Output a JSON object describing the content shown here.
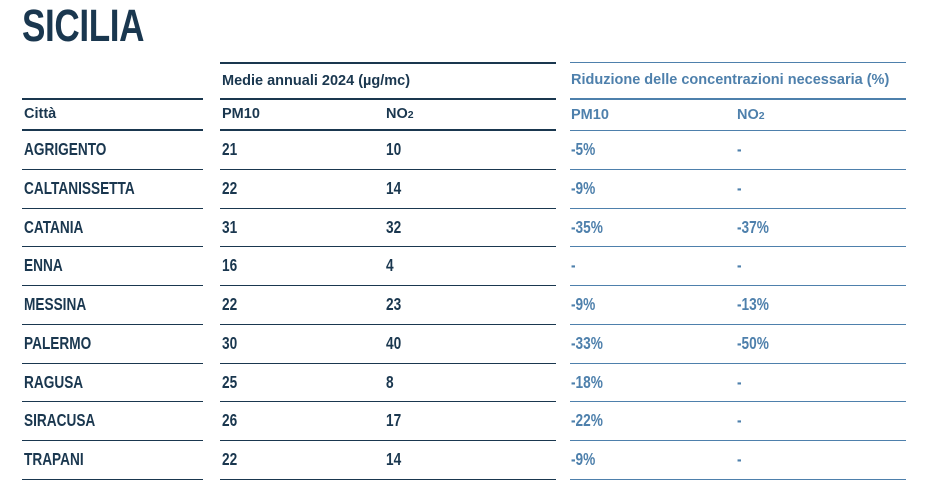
{
  "page_title": "SICILIA",
  "colors": {
    "dark_navy": "#1a374f",
    "light_blue": "#4e80ac",
    "background": "#ffffff"
  },
  "chart_data": {
    "type": "table",
    "title": "SICILIA",
    "group_headers": {
      "averages": "Medie annuali 2024 (µg/mc)",
      "reduction": "Riduzione delle concentrazioni necessaria (%)"
    },
    "column_headers": {
      "city": "Città",
      "pm10": "PM10",
      "no2_base": "NO",
      "no2_sub": "2"
    },
    "rows": [
      {
        "city": "AGRIGENTO",
        "pm10": "21",
        "no2": "10",
        "pm10_reduction": "-5%",
        "no2_reduction": "-"
      },
      {
        "city": "CALTANISSETTA",
        "pm10": "22",
        "no2": "14",
        "pm10_reduction": "-9%",
        "no2_reduction": "-"
      },
      {
        "city": "CATANIA",
        "pm10": "31",
        "no2": "32",
        "pm10_reduction": "-35%",
        "no2_reduction": "-37%"
      },
      {
        "city": "ENNA",
        "pm10": "16",
        "no2": "4",
        "pm10_reduction": "-",
        "no2_reduction": "-"
      },
      {
        "city": "MESSINA",
        "pm10": "22",
        "no2": "23",
        "pm10_reduction": "-9%",
        "no2_reduction": "-13%"
      },
      {
        "city": "PALERMO",
        "pm10": "30",
        "no2": "40",
        "pm10_reduction": "-33%",
        "no2_reduction": "-50%"
      },
      {
        "city": "RAGUSA",
        "pm10": "25",
        "no2": "8",
        "pm10_reduction": "-18%",
        "no2_reduction": "-"
      },
      {
        "city": "SIRACUSA",
        "pm10": "26",
        "no2": "17",
        "pm10_reduction": "-22%",
        "no2_reduction": "-"
      },
      {
        "city": "TRAPANI",
        "pm10": "22",
        "no2": "14",
        "pm10_reduction": "-9%",
        "no2_reduction": "-"
      }
    ]
  }
}
